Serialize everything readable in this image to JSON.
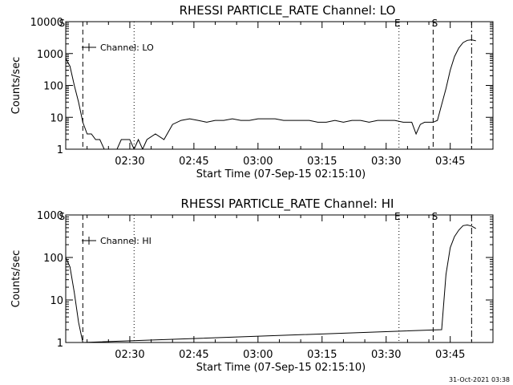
{
  "footer": {
    "timestamp": "31-Oct-2021 03:38"
  },
  "chart_data": [
    {
      "type": "line",
      "title": "RHESSI PARTICLE_RATE Channel: LO",
      "xlabel": "Start Time (07-Sep-15 02:15:10)",
      "ylabel": "Counts/sec",
      "yscale": "log",
      "ylim": [
        1,
        10000
      ],
      "xlim": [
        "02:15",
        "03:55"
      ],
      "x_ticks": [
        "02:30",
        "02:45",
        "03:00",
        "03:15",
        "03:30",
        "03:45"
      ],
      "y_ticks": [
        "1",
        "10",
        "100",
        "1000",
        "10000"
      ],
      "grid": false,
      "legend": {
        "position": "top-left",
        "entries": [
          "Channel: LO"
        ]
      },
      "marker_labels": [
        "S",
        "E",
        "S"
      ],
      "series": [
        {
          "name": "Channel: LO",
          "x": [
            "02:15",
            "02:16",
            "02:17",
            "02:18",
            "02:19",
            "02:20",
            "02:21",
            "02:22",
            "02:23",
            "02:24",
            "02:25",
            "02:26",
            "02:27",
            "02:28",
            "02:29",
            "02:30",
            "02:31",
            "02:32",
            "02:33",
            "02:34",
            "02:36",
            "02:38",
            "02:40",
            "02:42",
            "02:44",
            "02:46",
            "02:48",
            "02:50",
            "02:52",
            "02:54",
            "02:56",
            "02:58",
            "03:00",
            "03:02",
            "03:04",
            "03:06",
            "03:08",
            "03:10",
            "03:12",
            "03:14",
            "03:16",
            "03:18",
            "03:20",
            "03:22",
            "03:24",
            "03:26",
            "03:28",
            "03:30",
            "03:32",
            "03:34",
            "03:35",
            "03:36",
            "03:37",
            "03:38",
            "03:39",
            "03:40",
            "03:41",
            "03:42",
            "03:43",
            "03:44",
            "03:45",
            "03:46",
            "03:47",
            "03:48",
            "03:49",
            "03:50",
            "03:51"
          ],
          "y": [
            700,
            400,
            100,
            30,
            7,
            3,
            3,
            2,
            2,
            1,
            1,
            1,
            1,
            2,
            2,
            2,
            1,
            2,
            1,
            2,
            3,
            2,
            6,
            8,
            9,
            8,
            7,
            8,
            8,
            9,
            8,
            8,
            9,
            9,
            9,
            8,
            8,
            8,
            8,
            7,
            7,
            8,
            7,
            8,
            8,
            7,
            8,
            8,
            8,
            7,
            7,
            7,
            3,
            6,
            7,
            7,
            7,
            8,
            25,
            80,
            300,
            800,
            1500,
            2200,
            2600,
            2700,
            2500
          ]
        }
      ]
    },
    {
      "type": "line",
      "title": "RHESSI PARTICLE_RATE Channel: HI",
      "xlabel": "Start Time (07-Sep-15 02:15:10)",
      "ylabel": "Counts/sec",
      "yscale": "log",
      "ylim": [
        1,
        1000
      ],
      "xlim": [
        "02:15",
        "03:55"
      ],
      "x_ticks": [
        "02:30",
        "02:45",
        "03:00",
        "03:15",
        "03:30",
        "03:45"
      ],
      "y_ticks": [
        "1",
        "10",
        "100",
        "1000"
      ],
      "grid": false,
      "legend": {
        "position": "top-left",
        "entries": [
          "Channel: HI"
        ]
      },
      "marker_labels": [
        "S",
        "E",
        "S"
      ],
      "series": [
        {
          "name": "Channel: HI",
          "x": [
            "02:15",
            "02:16",
            "02:17",
            "02:18",
            "02:19",
            "03:43",
            "03:44",
            "03:45",
            "03:46",
            "03:47",
            "03:48",
            "03:49",
            "03:50",
            "03:51"
          ],
          "y": [
            100,
            60,
            15,
            3,
            1,
            2,
            40,
            170,
            310,
            440,
            560,
            580,
            550,
            480
          ]
        }
      ]
    }
  ]
}
